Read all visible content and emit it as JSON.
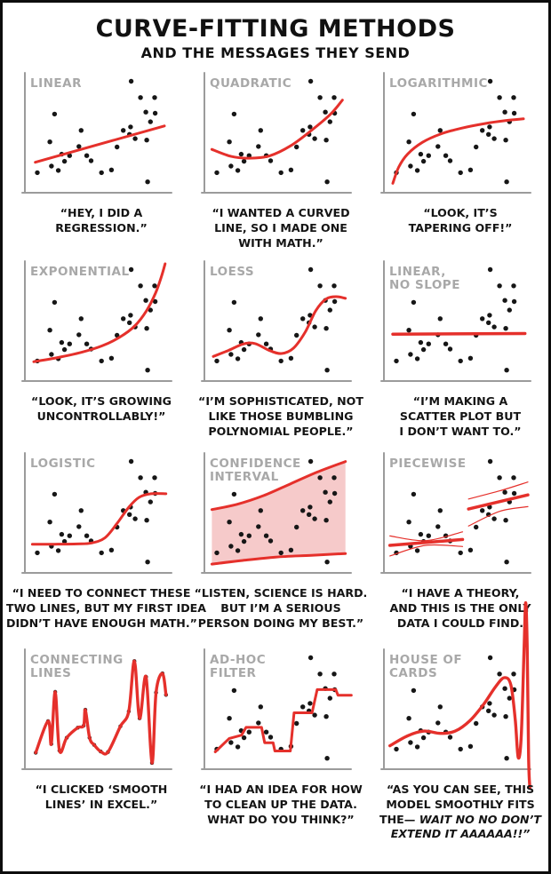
{
  "title": "CURVE-FITTING METHODS",
  "subtitle": "AND THE MESSAGES THEY SEND",
  "colors": {
    "red": "#e5302b",
    "pink": "#f6caca",
    "axis": "#9b9b9b",
    "label": "#a8a8a8",
    "ink": "#161616",
    "background": "#ffffff",
    "border": "#0d0d0d"
  },
  "scatter_points": [
    [
      0.716,
      0.951
    ],
    [
      0.779,
      0.812
    ],
    [
      0.874,
      0.812
    ],
    [
      0.815,
      0.688
    ],
    [
      0.878,
      0.678
    ],
    [
      0.846,
      0.605
    ],
    [
      0.2,
      0.671
    ],
    [
      0.712,
      0.561
    ],
    [
      0.663,
      0.532
    ],
    [
      0.379,
      0.532
    ],
    [
      0.705,
      0.498
    ],
    [
      0.743,
      0.461
    ],
    [
      0.821,
      0.449
    ],
    [
      0.168,
      0.434
    ],
    [
      0.364,
      0.395
    ],
    [
      0.621,
      0.39
    ],
    [
      0.248,
      0.329
    ],
    [
      0.301,
      0.317
    ],
    [
      0.417,
      0.317
    ],
    [
      0.267,
      0.268
    ],
    [
      0.446,
      0.273
    ],
    [
      0.179,
      0.227
    ],
    [
      0.225,
      0.19
    ],
    [
      0.084,
      0.171
    ],
    [
      0.516,
      0.171
    ],
    [
      0.583,
      0.195
    ],
    [
      0.827,
      0.093
    ]
  ],
  "chart_data": [
    {
      "id": "linear",
      "type": "scatter+fit",
      "fit": "linear",
      "label_lines": [
        "LINEAR"
      ],
      "points_ref": "scatter_points",
      "curves": [
        {
          "w": 3,
          "smooth": false,
          "pts": [
            [
              0.07,
              0.26
            ],
            [
              0.94,
              0.57
            ]
          ]
        }
      ],
      "caption_lines": [
        "“HEY, I DID A",
        "REGRESSION.”"
      ]
    },
    {
      "id": "quadratic",
      "type": "scatter+fit",
      "fit": "quadratic",
      "label_lines": [
        "QUADRATIC"
      ],
      "points_ref": "scatter_points",
      "curves": [
        {
          "w": 3,
          "smooth": true,
          "pts": [
            [
              0.05,
              0.37
            ],
            [
              0.18,
              0.31
            ],
            [
              0.3,
              0.295
            ],
            [
              0.44,
              0.315
            ],
            [
              0.58,
              0.4
            ],
            [
              0.72,
              0.53
            ],
            [
              0.85,
              0.67
            ],
            [
              0.93,
              0.79
            ]
          ]
        }
      ],
      "caption_lines": [
        "“I WANTED A CURVED",
        "LINE, SO I MADE ONE",
        "WITH MATH.”"
      ]
    },
    {
      "id": "logarithmic",
      "type": "scatter+fit",
      "fit": "logarithmic",
      "label_lines": [
        "LOGARITHMIC"
      ],
      "points_ref": "scatter_points",
      "curves": [
        {
          "w": 3,
          "smooth": true,
          "pts": [
            [
              0.06,
              0.08
            ],
            [
              0.1,
              0.22
            ],
            [
              0.16,
              0.33
            ],
            [
              0.26,
              0.43
            ],
            [
              0.38,
              0.5
            ],
            [
              0.52,
              0.55
            ],
            [
              0.68,
              0.59
            ],
            [
              0.82,
              0.615
            ],
            [
              0.94,
              0.63
            ]
          ]
        }
      ],
      "caption_lines": [
        "“LOOK, IT’S",
        "TAPERING OFF!”"
      ]
    },
    {
      "id": "exponential",
      "type": "scatter+fit",
      "fit": "exponential",
      "label_lines": [
        "EXPONENTIAL"
      ],
      "points_ref": "scatter_points",
      "curves": [
        {
          "w": 3,
          "smooth": true,
          "pts": [
            [
              0.06,
              0.165
            ],
            [
              0.22,
              0.2
            ],
            [
              0.38,
              0.245
            ],
            [
              0.52,
              0.3
            ],
            [
              0.64,
              0.375
            ],
            [
              0.74,
              0.47
            ],
            [
              0.82,
              0.6
            ],
            [
              0.88,
              0.75
            ],
            [
              0.92,
              0.89
            ],
            [
              0.945,
              1.0
            ]
          ]
        }
      ],
      "caption_lines": [
        "“LOOK, IT’S GROWING",
        "UNCONTROLLABLY!”"
      ]
    },
    {
      "id": "loess",
      "type": "scatter+fit",
      "fit": "loess",
      "label_lines": [
        "LOESS"
      ],
      "points_ref": "scatter_points",
      "curves": [
        {
          "w": 3,
          "smooth": true,
          "pts": [
            [
              0.06,
              0.21
            ],
            [
              0.16,
              0.26
            ],
            [
              0.26,
              0.315
            ],
            [
              0.34,
              0.32
            ],
            [
              0.44,
              0.26
            ],
            [
              0.52,
              0.235
            ],
            [
              0.6,
              0.28
            ],
            [
              0.68,
              0.42
            ],
            [
              0.75,
              0.6
            ],
            [
              0.82,
              0.7
            ],
            [
              0.89,
              0.72
            ],
            [
              0.95,
              0.705
            ]
          ]
        }
      ],
      "caption_lines": [
        "“I’M SOPHISTICATED, NOT",
        "LIKE THOSE BUMBLING",
        "POLYNOMIAL PEOPLE.”"
      ]
    },
    {
      "id": "linear-no-slope",
      "type": "scatter+fit",
      "fit": "constant",
      "label_lines": [
        "LINEAR,",
        "NO SLOPE"
      ],
      "points_ref": "scatter_points",
      "curves": [
        {
          "w": 3.5,
          "smooth": false,
          "pts": [
            [
              0.06,
              0.4
            ],
            [
              0.95,
              0.405
            ]
          ]
        }
      ],
      "caption_lines": [
        "“I’M MAKING A",
        "SCATTER PLOT BUT",
        "I DON’T WANT TO.”"
      ]
    },
    {
      "id": "logistic",
      "type": "scatter+fit",
      "fit": "logistic",
      "label_lines": [
        "LOGISTIC"
      ],
      "points_ref": "scatter_points",
      "curves": [
        {
          "w": 3,
          "smooth": true,
          "pts": [
            [
              0.05,
              0.245
            ],
            [
              0.2,
              0.245
            ],
            [
              0.35,
              0.247
            ],
            [
              0.45,
              0.255
            ],
            [
              0.54,
              0.3
            ],
            [
              0.62,
              0.42
            ],
            [
              0.7,
              0.56
            ],
            [
              0.77,
              0.645
            ],
            [
              0.85,
              0.675
            ],
            [
              0.95,
              0.675
            ]
          ]
        }
      ],
      "caption_lines": [
        "“I NEED TO CONNECT THESE",
        "TWO LINES, BUT MY FIRST IDEA",
        "DIDN’T HAVE ENOUGH MATH.”"
      ]
    },
    {
      "id": "confidence-interval",
      "type": "scatter+fit",
      "fit": "confidence-interval",
      "label_lines": [
        "CONFIDENCE",
        "INTERVAL"
      ],
      "points_ref": "scatter_points",
      "band": {
        "upper": [
          [
            0.05,
            0.54
          ],
          [
            0.22,
            0.585
          ],
          [
            0.4,
            0.66
          ],
          [
            0.58,
            0.76
          ],
          [
            0.76,
            0.86
          ],
          [
            0.95,
            0.95
          ]
        ],
        "lower": [
          [
            0.05,
            0.075
          ],
          [
            0.25,
            0.105
          ],
          [
            0.48,
            0.135
          ],
          [
            0.72,
            0.15
          ],
          [
            0.95,
            0.165
          ]
        ],
        "edge_w": 3
      },
      "curves": [],
      "caption_lines": [
        "“LISTEN, SCIENCE IS HARD.",
        "BUT I’M A SERIOUS",
        "PERSON DOING MY BEST.”"
      ]
    },
    {
      "id": "piecewise",
      "type": "scatter+fit",
      "fit": "piecewise-linear",
      "label_lines": [
        "PIECEWISE"
      ],
      "points_ref": "scatter_points",
      "curves": [
        {
          "w": 3.5,
          "smooth": false,
          "pts": [
            [
              0.04,
              0.235
            ],
            [
              0.53,
              0.285
            ]
          ]
        },
        {
          "w": 1.2,
          "smooth": true,
          "pts": [
            [
              0.04,
              0.315
            ],
            [
              0.28,
              0.275
            ],
            [
              0.53,
              0.35
            ]
          ]
        },
        {
          "w": 1.2,
          "smooth": true,
          "pts": [
            [
              0.04,
              0.145
            ],
            [
              0.28,
              0.235
            ],
            [
              0.53,
              0.225
            ]
          ]
        },
        {
          "w": 3.5,
          "smooth": false,
          "pts": [
            [
              0.57,
              0.545
            ],
            [
              0.97,
              0.665
            ]
          ]
        },
        {
          "w": 1.2,
          "smooth": true,
          "pts": [
            [
              0.57,
              0.63
            ],
            [
              0.78,
              0.7
            ],
            [
              0.97,
              0.775
            ]
          ]
        },
        {
          "w": 1.2,
          "smooth": true,
          "pts": [
            [
              0.57,
              0.4
            ],
            [
              0.78,
              0.525
            ],
            [
              0.97,
              0.565
            ]
          ]
        }
      ],
      "caption_lines": [
        "“I HAVE A THEORY,",
        "AND THIS IS THE ONLY",
        "DATA I COULD FIND."
      ]
    },
    {
      "id": "connecting-lines",
      "type": "scatter+fit",
      "fit": "connecting-lines",
      "points": [
        [
          0.073,
          0.141
        ],
        [
          0.156,
          0.41
        ],
        [
          0.178,
          0.215
        ],
        [
          0.204,
          0.659
        ],
        [
          0.233,
          0.159
        ],
        [
          0.282,
          0.268
        ],
        [
          0.356,
          0.354
        ],
        [
          0.396,
          0.371
        ],
        [
          0.407,
          0.507
        ],
        [
          0.436,
          0.268
        ],
        [
          0.467,
          0.207
        ],
        [
          0.511,
          0.151
        ],
        [
          0.56,
          0.146
        ],
        [
          0.644,
          0.366
        ],
        [
          0.7,
          0.493
        ],
        [
          0.738,
          0.922
        ],
        [
          0.773,
          0.434
        ],
        [
          0.816,
          0.788
        ],
        [
          0.856,
          0.054
        ],
        [
          0.884,
          0.654
        ],
        [
          0.927,
          0.817
        ],
        [
          0.951,
          0.634
        ]
      ],
      "label_lines": [
        "CONNECTING",
        "LINES"
      ],
      "dot_r": 2.2,
      "curves": [
        {
          "w": 3.4,
          "smooth": true,
          "pts": "self"
        }
      ],
      "caption_lines": [
        "“I CLICKED ‘SMOOTH",
        "LINES’ IN EXCEL.”"
      ]
    },
    {
      "id": "ad-hoc-filter",
      "type": "scatter+fit",
      "fit": "ad-hoc-filter",
      "label_lines": [
        "AD-HOC",
        "FILTER"
      ],
      "points_ref": "scatter_points",
      "curves": [
        {
          "w": 3,
          "smooth": false,
          "pts": [
            [
              0.073,
              0.148
            ],
            [
              0.167,
              0.262
            ],
            [
              0.25,
              0.29
            ],
            [
              0.281,
              0.357
            ],
            [
              0.385,
              0.357
            ],
            [
              0.406,
              0.226
            ],
            [
              0.463,
              0.226
            ],
            [
              0.475,
              0.155
            ],
            [
              0.579,
              0.155
            ],
            [
              0.604,
              0.481
            ],
            [
              0.725,
              0.481
            ],
            [
              0.76,
              0.679
            ],
            [
              0.885,
              0.679
            ],
            [
              0.9,
              0.631
            ],
            [
              0.99,
              0.631
            ]
          ]
        }
      ],
      "caption_lines": [
        "“I HAD AN IDEA FOR HOW",
        "TO CLEAN UP THE DATA.",
        "WHAT DO YOU THINK?”"
      ]
    },
    {
      "id": "house-of-cards",
      "type": "scatter+fit",
      "fit": "house-of-cards",
      "label_lines": [
        "HOUSE OF",
        "CARDS"
      ],
      "points_ref": "scatter_points",
      "curves": [
        {
          "w": 3.4,
          "smooth": true,
          "pts": [
            [
              0.04,
              0.2
            ],
            [
              0.16,
              0.285
            ],
            [
              0.27,
              0.325
            ],
            [
              0.38,
              0.305
            ],
            [
              0.48,
              0.325
            ],
            [
              0.58,
              0.415
            ],
            [
              0.67,
              0.55
            ],
            [
              0.75,
              0.7
            ],
            [
              0.81,
              0.78
            ],
            [
              0.855,
              0.72
            ],
            [
              0.885,
              0.42
            ],
            [
              0.905,
              0.1
            ],
            [
              0.925,
              0.28
            ],
            [
              0.945,
              1.05
            ],
            [
              0.955,
              1.42
            ],
            [
              0.965,
              1.05
            ],
            [
              0.975,
              0.1
            ],
            [
              0.983,
              -0.16
            ]
          ]
        }
      ],
      "caption_lines": [
        "“AS YOU CAN SEE, THIS",
        "MODEL SMOOTHLY FITS",
        [
          {
            "t": "THE— ",
            "i": false
          },
          {
            "t": "WAIT NO NO DON’T",
            "i": true
          }
        ],
        [
          {
            "t": "EXTEND IT AAAAAA!!”",
            "i": true
          }
        ]
      ]
    }
  ]
}
